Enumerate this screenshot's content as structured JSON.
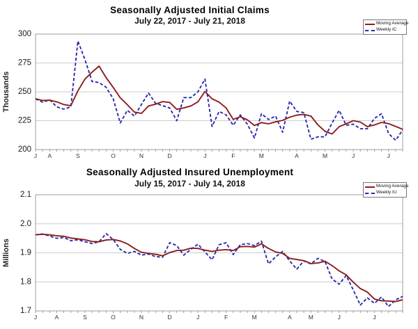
{
  "chart_data": [
    {
      "type": "line",
      "title": "Seasonally Adjusted Initial Claims",
      "subtitle": "July 22, 2017 - July 21, 2018",
      "y_axis_label": "Thousands",
      "ylim": [
        200,
        300
      ],
      "yticks": [
        200,
        225,
        250,
        275,
        300
      ],
      "ytick_labels": [
        "200",
        "225",
        "250",
        "275",
        "300"
      ],
      "grid": "horizontal",
      "legend_position": "top-right",
      "x_month_labels": [
        "J",
        "A",
        "S",
        "O",
        "N",
        "D",
        "J",
        "F",
        "M",
        "A",
        "M",
        "J",
        "J"
      ],
      "month_week_indices": [
        0,
        2,
        6,
        11,
        15,
        19,
        24,
        28,
        32,
        37,
        41,
        45,
        50
      ],
      "series": [
        {
          "name": "Moving Average",
          "color": "#8b1c1c",
          "style": "solid",
          "values": [
            244,
            242.5,
            242.7,
            241.3,
            239,
            238,
            250.8,
            261,
            267,
            272.3,
            262.3,
            253.8,
            244.8,
            238.8,
            232.5,
            231.3,
            237.8,
            239.3,
            241.5,
            240.8,
            234.8,
            236,
            237.8,
            241.3,
            250.3,
            244,
            241,
            236,
            226,
            228.5,
            225.8,
            220.8,
            223.3,
            222.3,
            224,
            225.3,
            228,
            229.8,
            230.5,
            229,
            221.3,
            215.8,
            213.5,
            219.8,
            222.3,
            225,
            223.8,
            219.8,
            221.3,
            223.5,
            222.5,
            220,
            217.5
          ]
        },
        {
          "name": "Weekly IC",
          "color": "#2b2bae",
          "style": "dashed",
          "values": [
            244,
            241,
            243,
            237,
            235,
            237,
            294,
            278,
            259,
            258,
            254,
            244,
            223,
            234,
            229,
            239,
            249,
            240,
            238,
            236,
            225,
            245,
            245,
            250,
            261,
            220,
            233,
            230,
            221,
            230,
            222,
            210,
            231,
            226,
            229,
            215,
            242,
            233,
            232,
            209,
            211,
            211,
            223,
            234,
            221,
            222,
            218,
            218,
            227,
            231,
            214,
            208,
            217
          ]
        }
      ]
    },
    {
      "type": "line",
      "title": "Seasonally Adjusted Insured Unemployment",
      "subtitle": "July 15, 2017 - July 14, 2018",
      "y_axis_label": "Millions",
      "ylim": [
        1.7,
        2.1
      ],
      "yticks": [
        1.7,
        1.8,
        1.9,
        2.0,
        2.1
      ],
      "ytick_labels": [
        "1.7",
        "1.8",
        "1.9",
        "2.0",
        "2.1"
      ],
      "grid": "horizontal",
      "legend_position": "top-right",
      "x_month_labels": [
        "J",
        "A",
        "S",
        "O",
        "N",
        "D",
        "J",
        "F",
        "M",
        "A",
        "M",
        "J",
        "J"
      ],
      "month_week_indices": [
        0,
        3,
        7,
        11,
        15,
        19,
        23,
        27,
        31,
        36,
        39,
        43,
        48
      ],
      "series": [
        {
          "name": "Moving Average",
          "color": "#8b1c1c",
          "style": "solid",
          "values": [
            1.962,
            1.964,
            1.962,
            1.959,
            1.957,
            1.951,
            1.948,
            1.945,
            1.939,
            1.938,
            1.944,
            1.946,
            1.941,
            1.931,
            1.915,
            1.902,
            1.898,
            1.895,
            1.89,
            1.901,
            1.908,
            1.909,
            1.916,
            1.915,
            1.909,
            1.905,
            1.909,
            1.911,
            1.908,
            1.921,
            1.922,
            1.92,
            1.931,
            1.915,
            1.903,
            1.898,
            1.881,
            1.877,
            1.873,
            1.863,
            1.865,
            1.871,
            1.856,
            1.838,
            1.824,
            1.799,
            1.777,
            1.765,
            1.741,
            1.735,
            1.734,
            1.732,
            1.738
          ]
        },
        {
          "name": "Weekly IU",
          "color": "#2b2bae",
          "style": "dashed",
          "values": [
            1.962,
            1.965,
            1.958,
            1.95,
            1.953,
            1.942,
            1.945,
            1.938,
            1.932,
            1.938,
            1.966,
            1.946,
            1.912,
            1.898,
            1.905,
            1.892,
            1.896,
            1.887,
            1.885,
            1.935,
            1.925,
            1.892,
            1.912,
            1.93,
            1.903,
            1.876,
            1.928,
            1.935,
            1.894,
            1.928,
            1.932,
            1.925,
            1.94,
            1.862,
            1.886,
            1.905,
            1.872,
            1.844,
            1.872,
            1.862,
            1.881,
            1.87,
            1.81,
            1.792,
            1.822,
            1.772,
            1.72,
            1.745,
            1.726,
            1.748,
            1.715,
            1.738,
            1.75
          ]
        }
      ]
    }
  ]
}
